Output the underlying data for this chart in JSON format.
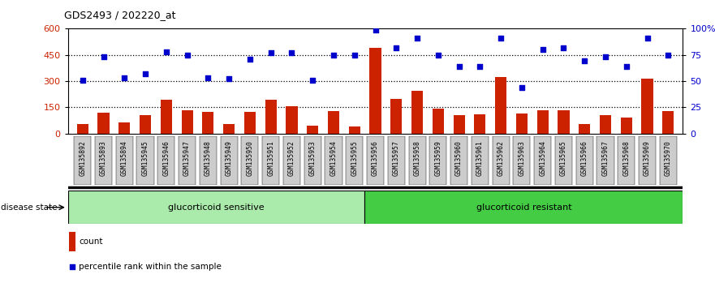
{
  "title": "GDS2493 / 202220_at",
  "samples": [
    "GSM135892",
    "GSM135893",
    "GSM135894",
    "GSM135945",
    "GSM135946",
    "GSM135947",
    "GSM135948",
    "GSM135949",
    "GSM135950",
    "GSM135951",
    "GSM135952",
    "GSM135953",
    "GSM135954",
    "GSM135955",
    "GSM135956",
    "GSM135957",
    "GSM135958",
    "GSM135959",
    "GSM135960",
    "GSM135961",
    "GSM135962",
    "GSM135963",
    "GSM135964",
    "GSM135965",
    "GSM135966",
    "GSM135967",
    "GSM135968",
    "GSM135969",
    "GSM135970"
  ],
  "count_values": [
    55,
    120,
    65,
    105,
    195,
    135,
    125,
    55,
    125,
    195,
    155,
    45,
    130,
    40,
    490,
    200,
    245,
    140,
    105,
    110,
    325,
    115,
    135,
    135,
    55,
    105,
    90,
    315,
    130
  ],
  "percentile_values": [
    51,
    73,
    53,
    57,
    78,
    75,
    53,
    52,
    71,
    77,
    77,
    51,
    75,
    75,
    99,
    82,
    91,
    75,
    64,
    64,
    91,
    44,
    80,
    82,
    69,
    73,
    64,
    91,
    75
  ],
  "sensitive_count": 14,
  "resistant_count": 15,
  "bar_color": "#cc2200",
  "dot_color": "#0000cc",
  "ylim_left": [
    0,
    600
  ],
  "ylim_right": [
    0,
    100
  ],
  "yticks_left": [
    0,
    150,
    300,
    450,
    600
  ],
  "ytick_labels_left": [
    "0",
    "150",
    "300",
    "450",
    "600"
  ],
  "yticks_right": [
    0,
    25,
    50,
    75,
    100
  ],
  "ytick_labels_right": [
    "0",
    "25",
    "50",
    "75",
    "100%"
  ],
  "hlines": [
    150,
    300,
    450
  ],
  "sensitive_label": "glucorticoid sensitive",
  "resistant_label": "glucorticoid resistant",
  "disease_state_label": "disease state",
  "legend_count_label": "count",
  "legend_percentile_label": "percentile rank within the sample",
  "sensitive_color": "#aaeaaa",
  "resistant_color": "#44cc44",
  "xtick_bg_color": "#cccccc",
  "background_plot": "#ffffff",
  "tick_label_color_left": "#cc2200",
  "tick_label_color_right": "#0000cc"
}
